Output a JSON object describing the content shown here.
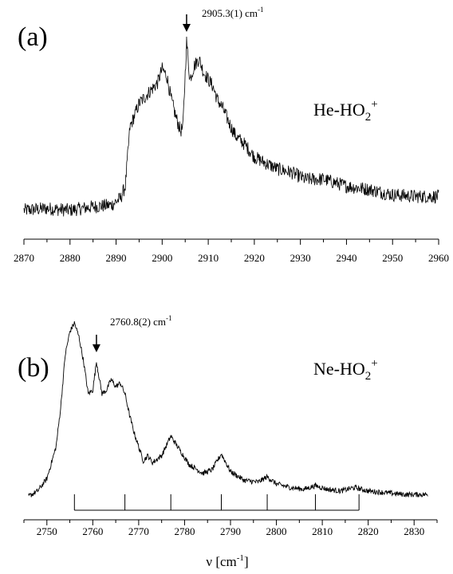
{
  "chart_data": [
    {
      "type": "line",
      "panel": "(a)",
      "species": {
        "base": "He-HO",
        "sub": "2",
        "sup": "+"
      },
      "annotation": {
        "wavenumber": 2905.3,
        "label": "2905.3(1) cm",
        "unit_sup": "-1"
      },
      "xlim": [
        2870,
        2960
      ],
      "xticks": [
        2870,
        2880,
        2890,
        2900,
        2910,
        2920,
        2930,
        2940,
        2950,
        2960
      ],
      "tick_labels": [
        "2870",
        "2880",
        "2890",
        "2900",
        "2910",
        "2920",
        "2930",
        "2940",
        "2950",
        "2960"
      ],
      "ylim": [
        0,
        1
      ],
      "grid": false,
      "series": [
        {
          "x": [
            2870,
            2875,
            2880,
            2885,
            2889,
            2891,
            2892,
            2893,
            2895,
            2897,
            2899,
            2900,
            2901,
            2902,
            2903,
            2904,
            2904.5,
            2905.3,
            2906,
            2907,
            2908,
            2909,
            2910,
            2911,
            2912,
            2913,
            2914,
            2915,
            2916,
            2918,
            2920,
            2922,
            2925,
            2928,
            2931,
            2935,
            2940,
            2945,
            2950,
            2955,
            2960
          ],
          "values": [
            0.02,
            0.03,
            0.02,
            0.04,
            0.05,
            0.09,
            0.16,
            0.5,
            0.64,
            0.7,
            0.76,
            0.84,
            0.8,
            0.66,
            0.56,
            0.48,
            0.5,
            1.0,
            0.78,
            0.86,
            0.9,
            0.82,
            0.78,
            0.74,
            0.66,
            0.62,
            0.56,
            0.5,
            0.45,
            0.4,
            0.33,
            0.3,
            0.26,
            0.24,
            0.2,
            0.2,
            0.16,
            0.14,
            0.11,
            0.1,
            0.1
          ],
          "noise": 0.04
        }
      ]
    },
    {
      "type": "line",
      "panel": "(b)",
      "species": {
        "base": "Ne-HO",
        "sub": "2",
        "sup": "+"
      },
      "annotation": {
        "wavenumber": 2760.8,
        "label": "2760.8(2) cm",
        "unit_sup": "-1"
      },
      "xlim": [
        2745,
        2835
      ],
      "xticks": [
        2750,
        2760,
        2770,
        2780,
        2790,
        2800,
        2810,
        2820,
        2830
      ],
      "tick_labels": [
        "2750",
        "2760",
        "2770",
        "2780",
        "2790",
        "2800",
        "2810",
        "2820",
        "2830"
      ],
      "xlabel": {
        "base": "ν [cm",
        "sup": "-1",
        "close": "]"
      },
      "ylim": [
        0,
        1
      ],
      "grid": false,
      "progression": [
        2756,
        2767,
        2777,
        2788,
        2798,
        2808.5,
        2818
      ],
      "series": [
        {
          "x": [
            2746,
            2748,
            2750,
            2752,
            2753,
            2754,
            2755,
            2756,
            2757,
            2758,
            2759,
            2760,
            2760.8,
            2762,
            2763,
            2764,
            2765,
            2766,
            2767,
            2768,
            2769,
            2770,
            2771,
            2772,
            2773,
            2775,
            2777,
            2779,
            2781,
            2784,
            2786,
            2788,
            2790,
            2793,
            2796,
            2798,
            2800,
            2803,
            2806,
            2808.5,
            2811,
            2814,
            2817,
            2820,
            2824,
            2828,
            2833
          ],
          "values": [
            0.02,
            0.05,
            0.12,
            0.3,
            0.52,
            0.82,
            0.95,
            1.0,
            0.92,
            0.78,
            0.6,
            0.62,
            0.78,
            0.6,
            0.62,
            0.68,
            0.64,
            0.66,
            0.6,
            0.48,
            0.38,
            0.3,
            0.22,
            0.25,
            0.21,
            0.25,
            0.36,
            0.28,
            0.2,
            0.15,
            0.17,
            0.26,
            0.16,
            0.11,
            0.1,
            0.13,
            0.09,
            0.07,
            0.06,
            0.08,
            0.06,
            0.05,
            0.07,
            0.05,
            0.04,
            0.03,
            0.03
          ],
          "noise": 0.015
        }
      ]
    }
  ]
}
